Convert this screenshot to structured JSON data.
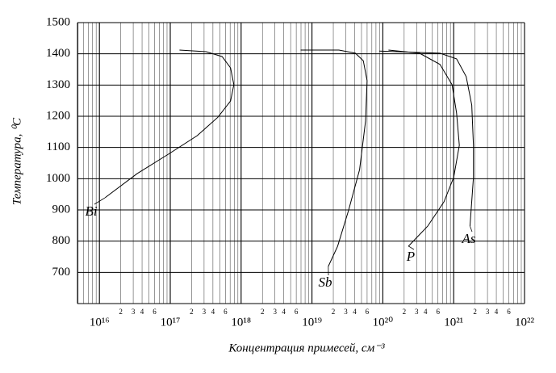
{
  "chart_data": {
    "type": "line",
    "xlabel": "Концентрация примесей,   см⁻³",
    "ylabel": "Температура,  ⁰C",
    "xlog": true,
    "xlim": [
      4900000000000000.0,
      1e+22
    ],
    "xticks": [
      {
        "value": 1e+16,
        "label": "10¹⁶"
      },
      {
        "value": 2e+16,
        "label": "2"
      },
      {
        "value": 3e+16,
        "label": "3"
      },
      {
        "value": 4e+16,
        "label": "4"
      },
      {
        "value": 6e+16,
        "label": "6"
      },
      {
        "value": 1e+17,
        "label": "10¹⁷"
      },
      {
        "value": 2e+17,
        "label": "2"
      },
      {
        "value": 3e+17,
        "label": "3"
      },
      {
        "value": 4e+17,
        "label": "4"
      },
      {
        "value": 6e+17,
        "label": "6"
      },
      {
        "value": 1e+18,
        "label": "10¹⁸"
      },
      {
        "value": 2e+18,
        "label": "2"
      },
      {
        "value": 3e+18,
        "label": "3"
      },
      {
        "value": 4e+18,
        "label": "4"
      },
      {
        "value": 6e+18,
        "label": "6"
      },
      {
        "value": 1e+19,
        "label": "10¹⁹"
      },
      {
        "value": 2e+19,
        "label": "2"
      },
      {
        "value": 3e+19,
        "label": "3"
      },
      {
        "value": 4e+19,
        "label": "4"
      },
      {
        "value": 6e+19,
        "label": "6"
      },
      {
        "value": 1e+20,
        "label": "10²⁰"
      },
      {
        "value": 2e+20,
        "label": "2"
      },
      {
        "value": 3e+20,
        "label": "3"
      },
      {
        "value": 4e+20,
        "label": "4"
      },
      {
        "value": 6e+20,
        "label": "6"
      },
      {
        "value": 1e+21,
        "label": "10²¹"
      },
      {
        "value": 2e+21,
        "label": "2"
      },
      {
        "value": 3e+21,
        "label": "3"
      },
      {
        "value": 4e+21,
        "label": "4"
      },
      {
        "value": 6e+21,
        "label": "6"
      },
      {
        "value": 1e+22,
        "label": "10²²"
      }
    ],
    "xminor_grid": [
      5000000000000000.0,
      6000000000000000.0,
      7000000000000000.0,
      8000000000000000.0,
      9000000000000000.0,
      5e+16,
      7e+16,
      8e+16,
      9e+16,
      5e+17,
      7e+17,
      8e+17,
      9e+17,
      5e+18,
      7e+18,
      8e+18,
      9e+18,
      5e+19,
      7e+19,
      8e+19,
      9e+19,
      5e+20,
      7e+20,
      8e+20,
      9e+20,
      5e+21,
      7e+21,
      8e+21,
      9e+21
    ],
    "ylim": [
      600,
      1500
    ],
    "yticks": [
      700,
      800,
      900,
      1000,
      1100,
      1200,
      1300,
      1400,
      1500
    ],
    "grid": true,
    "series": [
      {
        "name": "Bi",
        "color": "#000000",
        "x": [
          1.35e+17,
          3.2e+17,
          5.4e+17,
          7.1e+17,
          7.9e+17,
          7.1e+17,
          4.7e+17,
          2.4e+17,
          9.8e+16,
          3.4e+16,
          1.2e+16
        ],
        "values": [
          1412,
          1407,
          1391,
          1355,
          1301,
          1249,
          1197,
          1138,
          1081,
          1016,
          939
        ]
      },
      {
        "name": "Sb",
        "color": "#000000",
        "x": [
          6.9e+18,
          2.4e+19,
          4.1e+19,
          5.3e+19,
          6e+19,
          5.7e+19,
          4.7e+19,
          3.3e+19,
          2.3e+19,
          1.7e+19
        ],
        "values": [
          1412,
          1412,
          1402,
          1378,
          1314,
          1185,
          1029,
          900,
          784,
          719
        ]
      },
      {
        "name": "P",
        "color": "#000000",
        "x": [
          1.2e+20,
          3.3e+20,
          6.4e+20,
          9.5e+20,
          1.1e+21,
          1.2e+21,
          1e+21,
          7.3e+20,
          4.3e+20,
          2.3e+20
        ],
        "values": [
          1412,
          1402,
          1366,
          1301,
          1210,
          1107,
          1004,
          926,
          848,
          784
        ]
      },
      {
        "name": "As",
        "color": "#000000",
        "x": [
          8.9e+19,
          6.4e+20,
          1.1e+21,
          1.5e+21,
          1.8e+21,
          1.9e+21,
          1.9e+21,
          1.7e+21
        ],
        "values": [
          1409,
          1402,
          1384,
          1327,
          1236,
          1107,
          1004,
          848
        ]
      }
    ]
  }
}
